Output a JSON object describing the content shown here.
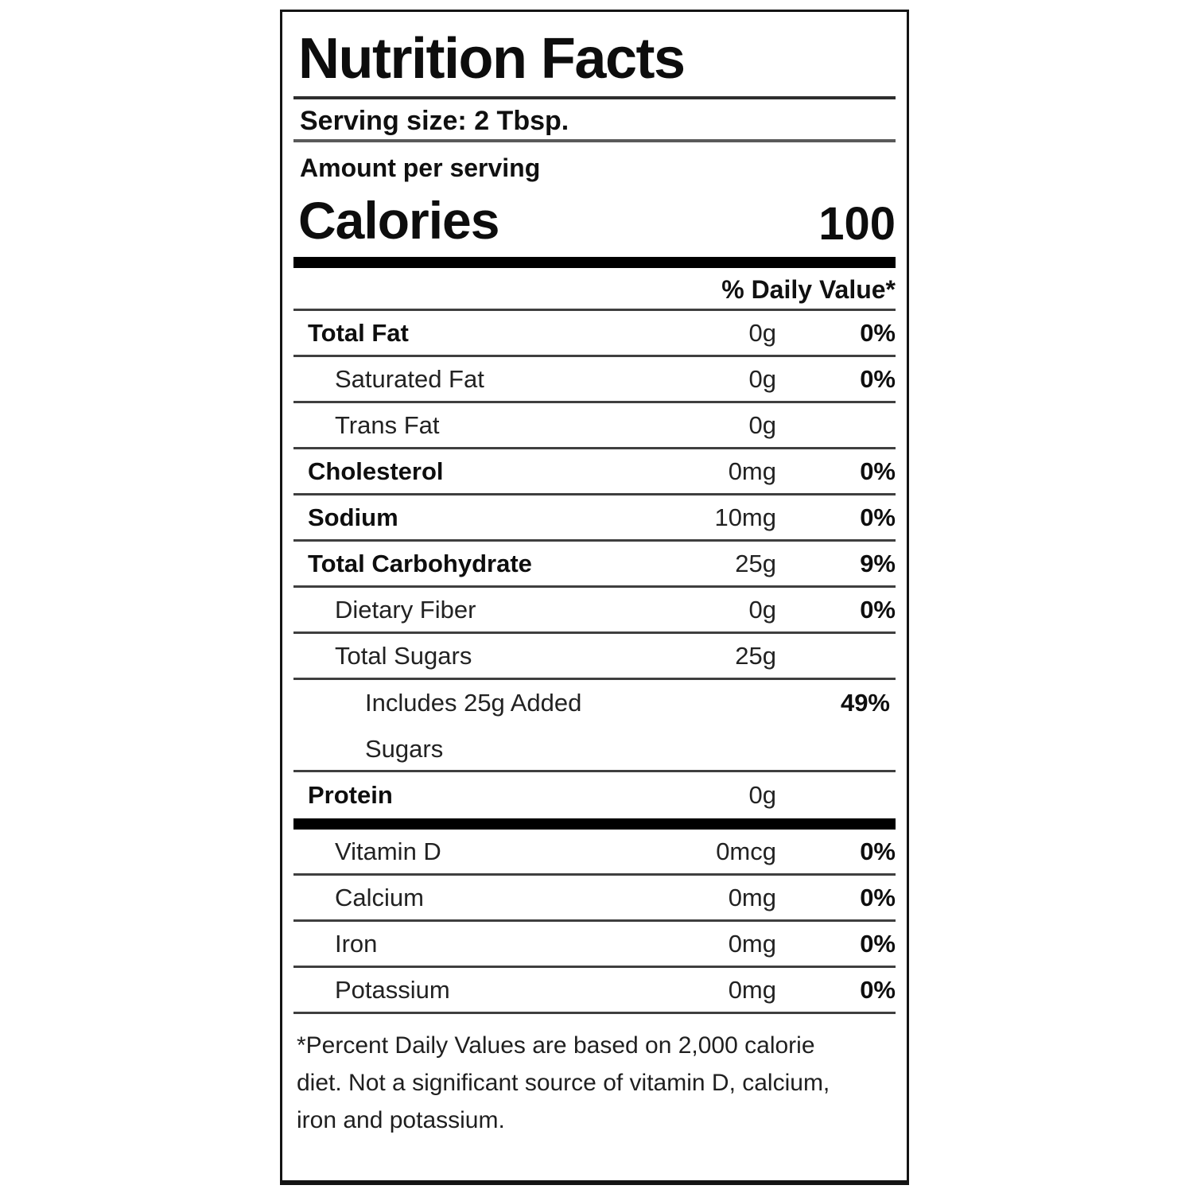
{
  "header": {
    "title": "Nutrition Facts",
    "serving_size": "Serving size: 2 Tbsp.",
    "amount_per_serving": "Amount per serving",
    "calories_label": "Calories",
    "calories_value": "100",
    "daily_value_header": "% Daily Value*"
  },
  "nutrients": [
    {
      "label": "Total Fat",
      "amount": "0g",
      "dv": "0%",
      "bold": true,
      "indent": 0
    },
    {
      "label": "Saturated Fat",
      "amount": "0g",
      "dv": "0%",
      "bold": false,
      "indent": 1
    },
    {
      "label": "Trans Fat",
      "amount": "0g",
      "dv": "",
      "bold": false,
      "indent": 1
    },
    {
      "label": "Cholesterol",
      "amount": "0mg",
      "dv": "0%",
      "bold": true,
      "indent": 0
    },
    {
      "label": "Sodium",
      "amount": "10mg",
      "dv": "0%",
      "bold": true,
      "indent": 0
    },
    {
      "label": "Total Carbohydrate",
      "amount": "25g",
      "dv": "9%",
      "bold": true,
      "indent": 0
    },
    {
      "label": "Dietary Fiber",
      "amount": "0g",
      "dv": "0%",
      "bold": false,
      "indent": 1
    },
    {
      "label": "Total Sugars",
      "amount": "25g",
      "dv": "",
      "bold": false,
      "indent": 1
    },
    {
      "label": "Includes 25g Added Sugars",
      "amount": "",
      "dv": "49%",
      "bold": false,
      "indent": 2,
      "wrap": true
    },
    {
      "label": "Protein",
      "amount": "0g",
      "dv": "",
      "bold": true,
      "indent": 0,
      "last": true
    }
  ],
  "micronutrients": [
    {
      "label": "Vitamin D",
      "amount": "0mcg",
      "dv": "0%"
    },
    {
      "label": "Calcium",
      "amount": "0mg",
      "dv": "0%"
    },
    {
      "label": "Iron",
      "amount": "0mg",
      "dv": "0%"
    },
    {
      "label": "Potassium",
      "amount": "0mg",
      "dv": "0%"
    }
  ],
  "footnote": "*Percent Daily Values are based on 2,000 calorie diet. Not a significant source of vitamin D, calcium, iron and potassium.",
  "colors": {
    "text": "#111111",
    "divider_thin": "#3f3f3f",
    "divider_thick": "#000000",
    "background": "#ffffff"
  }
}
